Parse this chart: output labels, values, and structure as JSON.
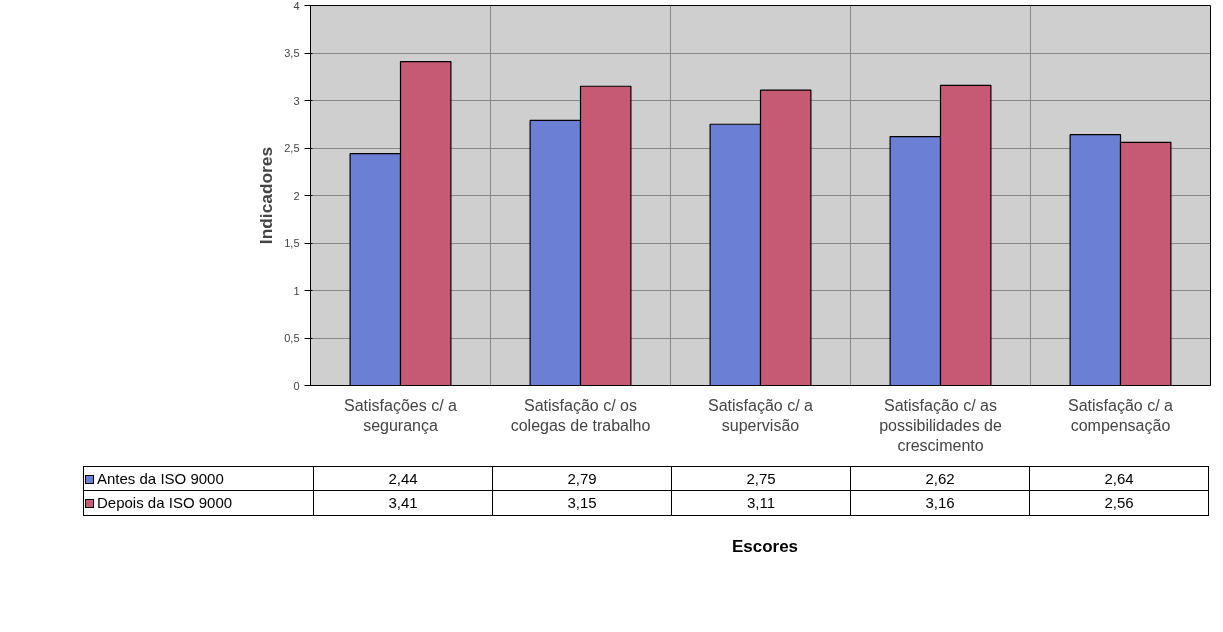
{
  "chart_data": {
    "type": "bar",
    "xlabel": "Escores",
    "ylabel": "Indicadores",
    "categories": [
      "Satisfações c/ a segurança",
      "Satisfação c/ os colegas de trabalho",
      "Satisfação c/ a supervisão",
      "Satisfação c/ as possibilidades de crescimento",
      "Satisfação c/ a compensação"
    ],
    "series": [
      {
        "name": "Antes da ISO 9000",
        "color": "#6b80d4",
        "values": [
          2.44,
          2.79,
          2.75,
          2.62,
          2.64
        ],
        "value_labels": [
          "2,44",
          "2,79",
          "2,75",
          "2,62",
          "2,64"
        ]
      },
      {
        "name": "Depois da ISO 9000",
        "color": "#c65a74",
        "values": [
          3.41,
          3.15,
          3.11,
          3.16,
          2.56
        ],
        "value_labels": [
          "3,41",
          "3,15",
          "3,11",
          "3,16",
          "2,56"
        ]
      }
    ],
    "ylim": [
      0,
      4
    ],
    "yticks": [
      0,
      {
        "value": 0.5,
        "label": "0,5"
      },
      1,
      {
        "value": 1.5,
        "label": "1,5"
      },
      2,
      {
        "value": 2.5,
        "label": "2,5"
      },
      3,
      {
        "value": 3.5,
        "label": "3,5"
      },
      4
    ],
    "grid": true,
    "legend": "bottom"
  }
}
